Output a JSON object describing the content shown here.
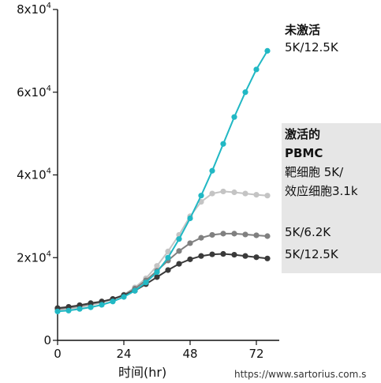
{
  "chart_data": {
    "type": "line",
    "xlabel": "时间(hr)",
    "ylabel": "",
    "xlim": [
      0,
      78
    ],
    "ylim": [
      0,
      80000
    ],
    "x_ticks": [
      "0",
      "24",
      "48",
      "72"
    ],
    "y_ticks": [
      {
        "value": 0,
        "base": "0",
        "exp": ""
      },
      {
        "value": 20000,
        "base": "2x10",
        "exp": "4"
      },
      {
        "value": 40000,
        "base": "4x10",
        "exp": "4"
      },
      {
        "value": 60000,
        "base": "6x10",
        "exp": "4"
      },
      {
        "value": 80000,
        "base": "8x10",
        "exp": "4"
      }
    ],
    "x": [
      0,
      4,
      8,
      12,
      16,
      20,
      24,
      28,
      32,
      36,
      40,
      44,
      48,
      52,
      56,
      60,
      64,
      68,
      72,
      76
    ],
    "series": [
      {
        "name": "5K/12.5K",
        "group": "未激活",
        "color": "#21b8c4",
        "values": [
          7000,
          7200,
          7600,
          8000,
          8600,
          9400,
          10500,
          12000,
          14000,
          16500,
          20000,
          24500,
          29500,
          35000,
          41000,
          47500,
          54000,
          60000,
          65500,
          70000
        ]
      },
      {
        "name": "5K/3.1K",
        "group": "激活的PBMC",
        "color": "#c4c4c4",
        "values": [
          7300,
          7600,
          8000,
          8500,
          9100,
          9900,
          11000,
          12800,
          15000,
          18000,
          21500,
          25500,
          30000,
          33500,
          35500,
          36000,
          35800,
          35500,
          35200,
          35000
        ]
      },
      {
        "name": "5K/6.2K",
        "group": "激活的PBMC",
        "color": "#808080",
        "values": [
          7600,
          7900,
          8300,
          8800,
          9300,
          10000,
          11000,
          12500,
          14500,
          16800,
          19300,
          21600,
          23500,
          24800,
          25500,
          25800,
          25800,
          25600,
          25400,
          25200
        ]
      },
      {
        "name": "5K/12.5K",
        "group": "激活的PBMC",
        "color": "#3a3a3a",
        "values": [
          7800,
          8100,
          8500,
          9000,
          9400,
          10000,
          10900,
          12000,
          13600,
          15300,
          17000,
          18500,
          19600,
          20400,
          20800,
          20900,
          20700,
          20400,
          20100,
          19800
        ]
      }
    ]
  },
  "legend": {
    "unactivated_title": "未激活",
    "unactivated_ratio": "5K/12.5K",
    "activated_title_1": "激活的",
    "activated_title_2": "PBMC",
    "activated_desc_1": "靶细胞 5K/",
    "activated_desc_2": "效应细胞3.1k",
    "ratio_6_2": "5K/6.2K",
    "ratio_12_5": "5K/12.5K"
  },
  "source": "https://www.sartorius.com.s"
}
